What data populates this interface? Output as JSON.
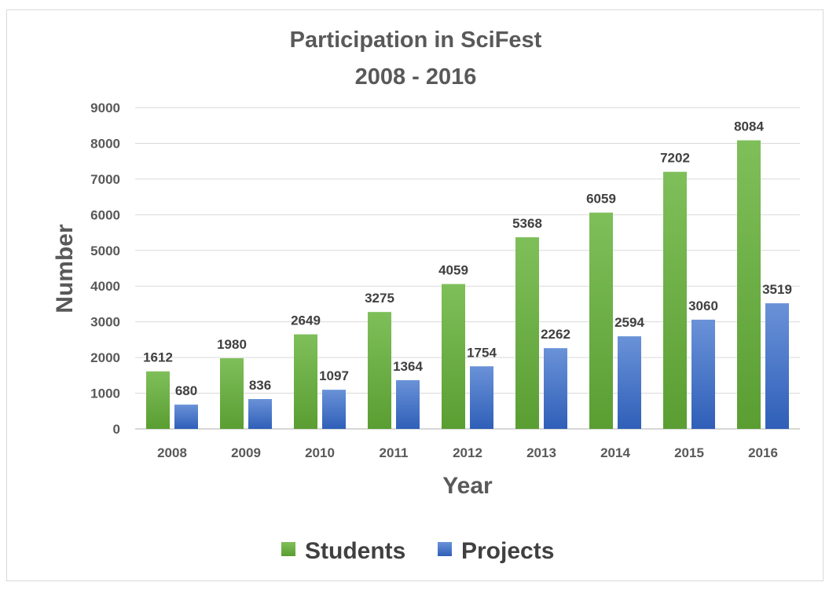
{
  "chart_data": {
    "type": "bar",
    "title": [
      "Participation in SciFest",
      "2008 - 2016"
    ],
    "xlabel": "Year",
    "ylabel": "Number",
    "categories": [
      "2008",
      "2009",
      "2010",
      "2011",
      "2012",
      "2013",
      "2014",
      "2015",
      "2016"
    ],
    "series": [
      {
        "name": "Students",
        "color": "#70ad47",
        "values": [
          1612,
          1980,
          2649,
          3275,
          4059,
          5368,
          6059,
          7202,
          8084
        ]
      },
      {
        "name": "Projects",
        "color": "#4472c4",
        "values": [
          680,
          836,
          1097,
          1364,
          1754,
          2262,
          2594,
          3060,
          3519
        ]
      }
    ],
    "ylim": [
      0,
      9000
    ],
    "yticks": [
      0,
      1000,
      2000,
      3000,
      4000,
      5000,
      6000,
      7000,
      8000,
      9000
    ],
    "grid": true,
    "legend": "bottom",
    "data_labels": true
  }
}
